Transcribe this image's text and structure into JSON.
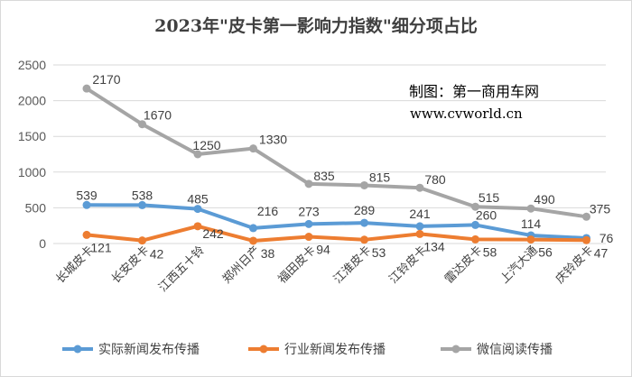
{
  "chart_data": {
    "type": "line",
    "title": "2023年\"皮卡第一影响力指数\"细分项占比",
    "categories": [
      "长城皮卡",
      "长安皮卡",
      "江西五十铃",
      "郑州日产",
      "福田皮卡",
      "江淮皮卡",
      "江铃皮卡",
      "雷达皮卡",
      "上汽大通",
      "庆铃皮卡"
    ],
    "ylim": [
      0,
      2500
    ],
    "yticks": [
      0,
      500,
      1000,
      1500,
      2000,
      2500
    ],
    "grid": true,
    "legend_position": "bottom",
    "series": [
      {
        "name": "实际新闻发布传播",
        "color": "#5B9BD5",
        "values": [
          539,
          538,
          485,
          216,
          273,
          289,
          241,
          260,
          114,
          76
        ]
      },
      {
        "name": "行业新闻发布传播",
        "color": "#ED7D31",
        "values": [
          121,
          42,
          242,
          38,
          94,
          53,
          134,
          58,
          56,
          47
        ]
      },
      {
        "name": "微信阅读传播",
        "color": "#A5A5A5",
        "values": [
          2170,
          1670,
          1250,
          1330,
          835,
          815,
          780,
          515,
          490,
          375
        ]
      }
    ],
    "annotations": [
      "制图：第一商用车网",
      "www.cvworld.cn"
    ]
  }
}
